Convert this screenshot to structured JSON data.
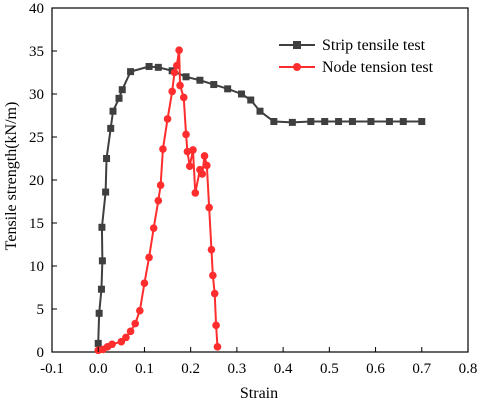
{
  "chart_data": {
    "type": "line",
    "xlabel": "Strain",
    "ylabel": "Tensile strength(kN/m)",
    "xlim": [
      -0.1,
      0.8
    ],
    "ylim": [
      0,
      40
    ],
    "x_ticks": [
      "-0.1",
      "0.0",
      "0.1",
      "0.2",
      "0.3",
      "0.4",
      "0.5",
      "0.6",
      "0.7",
      "0.8"
    ],
    "y_ticks": [
      "0",
      "5",
      "10",
      "15",
      "20",
      "25",
      "30",
      "35",
      "40"
    ],
    "grid": false,
    "legend_position": "top-right",
    "series": [
      {
        "name": "Strip tensile test",
        "color": "#3f3f3f",
        "marker": "square",
        "points": [
          [
            0.0,
            1.0
          ],
          [
            0.002,
            4.5
          ],
          [
            0.007,
            7.3
          ],
          [
            0.009,
            10.6
          ],
          [
            0.008,
            14.5
          ],
          [
            0.016,
            18.6
          ],
          [
            0.018,
            22.5
          ],
          [
            0.027,
            26.0
          ],
          [
            0.032,
            28.0
          ],
          [
            0.045,
            29.5
          ],
          [
            0.052,
            30.5
          ],
          [
            0.07,
            32.6
          ],
          [
            0.11,
            33.2
          ],
          [
            0.13,
            33.1
          ],
          [
            0.16,
            32.7
          ],
          [
            0.19,
            32.0
          ],
          [
            0.22,
            31.6
          ],
          [
            0.25,
            31.1
          ],
          [
            0.28,
            30.6
          ],
          [
            0.31,
            30.0
          ],
          [
            0.33,
            29.3
          ],
          [
            0.35,
            28.0
          ],
          [
            0.38,
            26.8
          ],
          [
            0.42,
            26.7
          ],
          [
            0.46,
            26.8
          ],
          [
            0.49,
            26.8
          ],
          [
            0.52,
            26.8
          ],
          [
            0.55,
            26.8
          ],
          [
            0.59,
            26.8
          ],
          [
            0.63,
            26.8
          ],
          [
            0.66,
            26.8
          ],
          [
            0.7,
            26.8
          ]
        ]
      },
      {
        "name": "Node tension test",
        "color": "#ff2d2d",
        "marker": "circle",
        "points": [
          [
            0.0,
            0.2
          ],
          [
            0.01,
            0.3
          ],
          [
            0.02,
            0.6
          ],
          [
            0.03,
            0.9
          ],
          [
            0.05,
            1.2
          ],
          [
            0.06,
            1.7
          ],
          [
            0.07,
            2.4
          ],
          [
            0.08,
            3.3
          ],
          [
            0.09,
            4.8
          ],
          [
            0.1,
            8.0
          ],
          [
            0.11,
            11.0
          ],
          [
            0.12,
            14.4
          ],
          [
            0.13,
            17.6
          ],
          [
            0.135,
            19.4
          ],
          [
            0.14,
            23.6
          ],
          [
            0.15,
            27.1
          ],
          [
            0.16,
            30.3
          ],
          [
            0.165,
            32.5
          ],
          [
            0.17,
            33.3
          ],
          [
            0.175,
            35.1
          ],
          [
            0.177,
            31.0
          ],
          [
            0.185,
            29.6
          ],
          [
            0.19,
            25.3
          ],
          [
            0.193,
            23.3
          ],
          [
            0.198,
            21.6
          ],
          [
            0.205,
            23.5
          ],
          [
            0.21,
            18.5
          ],
          [
            0.22,
            21.2
          ],
          [
            0.225,
            20.7
          ],
          [
            0.23,
            22.8
          ],
          [
            0.235,
            21.7
          ],
          [
            0.24,
            16.8
          ],
          [
            0.245,
            11.9
          ],
          [
            0.248,
            8.9
          ],
          [
            0.252,
            6.8
          ],
          [
            0.255,
            3.1
          ],
          [
            0.258,
            0.6
          ]
        ]
      }
    ]
  }
}
